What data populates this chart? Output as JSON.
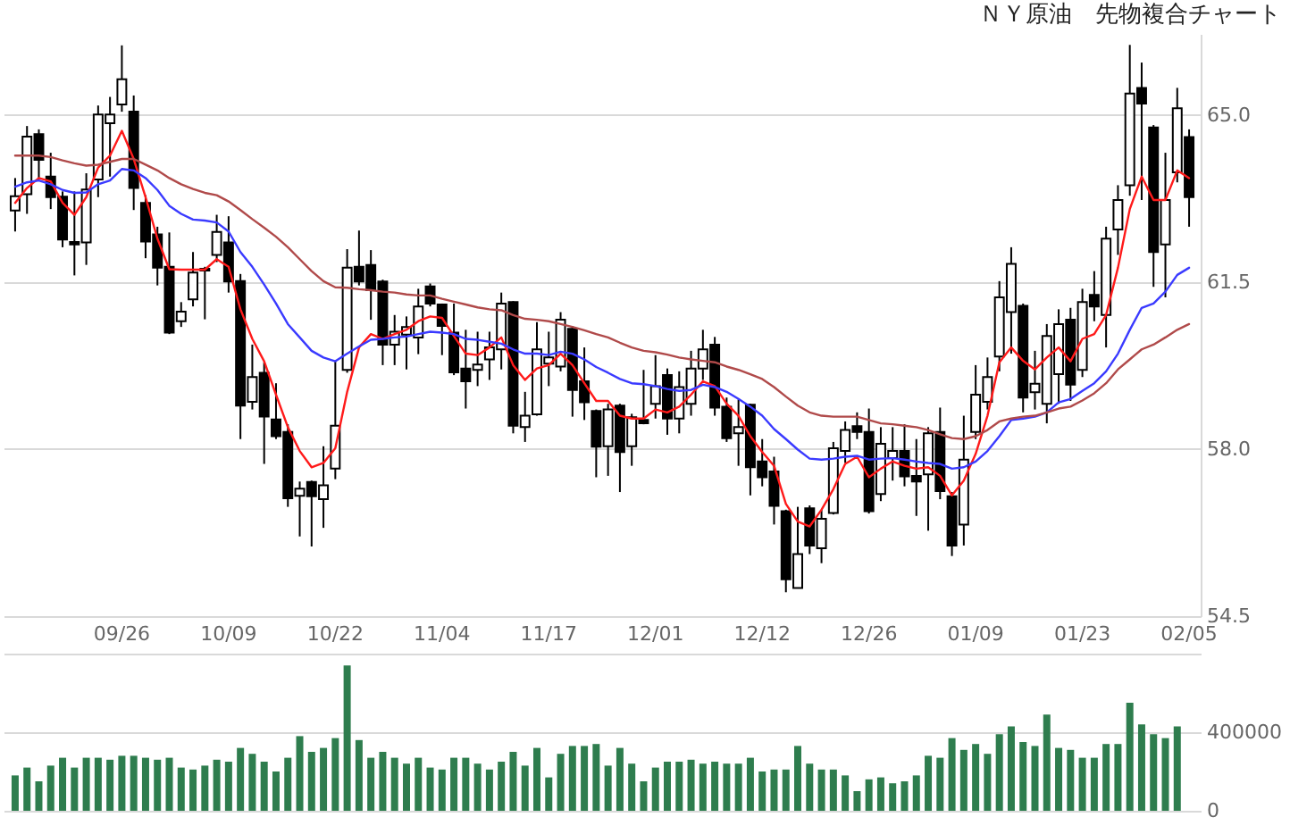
{
  "chart_data": [
    {
      "type": "candlestick",
      "title": "ＮＹ原油　先物複合チャート",
      "categories": [
        null,
        null,
        null,
        null,
        null,
        null,
        null,
        null,
        null,
        "09/26",
        null,
        null,
        null,
        null,
        null,
        null,
        null,
        null,
        "10/09",
        null,
        null,
        null,
        null,
        null,
        null,
        null,
        null,
        "10/22",
        null,
        null,
        null,
        null,
        null,
        null,
        null,
        null,
        "11/04",
        null,
        null,
        null,
        null,
        null,
        null,
        null,
        null,
        "11/17",
        null,
        null,
        null,
        null,
        null,
        null,
        null,
        null,
        "12/01",
        null,
        null,
        null,
        null,
        null,
        null,
        null,
        null,
        "12/12",
        null,
        null,
        null,
        null,
        null,
        null,
        null,
        null,
        "12/26",
        null,
        null,
        null,
        null,
        null,
        null,
        null,
        null,
        "01/09",
        null,
        null,
        null,
        null,
        null,
        null,
        null,
        null,
        "01/23",
        null,
        null,
        null,
        null,
        null,
        null,
        null,
        null,
        "02/05"
      ],
      "ohlc": [
        [
          63.0,
          63.68,
          62.56,
          63.3
        ],
        [
          63.34,
          64.77,
          62.93,
          64.55
        ],
        [
          64.6,
          64.7,
          63.65,
          64.06
        ],
        [
          63.71,
          64.21,
          63.03,
          63.28
        ],
        [
          63.29,
          63.4,
          62.23,
          62.39
        ],
        [
          62.34,
          63.4,
          61.64,
          62.29
        ],
        [
          62.33,
          63.78,
          61.86,
          63.44
        ],
        [
          63.65,
          65.2,
          63.28,
          65.01
        ],
        [
          64.83,
          65.38,
          63.71,
          65.01
        ],
        [
          65.22,
          66.46,
          65.07,
          65.75
        ],
        [
          65.07,
          65.41,
          63.01,
          63.47
        ],
        [
          63.16,
          63.32,
          62.0,
          62.35
        ],
        [
          62.5,
          62.66,
          61.43,
          61.8
        ],
        [
          61.82,
          62.54,
          60.41,
          60.44
        ],
        [
          60.68,
          61.08,
          60.56,
          60.88
        ],
        [
          61.14,
          62.13,
          60.99,
          61.7
        ],
        [
          61.78,
          61.82,
          60.72,
          61.74
        ],
        [
          62.07,
          62.91,
          61.92,
          62.55
        ],
        [
          62.33,
          62.88,
          61.28,
          61.51
        ],
        [
          61.52,
          61.67,
          58.21,
          58.91
        ],
        [
          58.99,
          60.19,
          58.83,
          59.51
        ],
        [
          59.6,
          59.82,
          57.69,
          58.68
        ],
        [
          58.62,
          59.38,
          58.21,
          58.27
        ],
        [
          58.36,
          58.52,
          56.79,
          56.97
        ],
        [
          57.02,
          57.32,
          56.17,
          57.17
        ],
        [
          57.31,
          57.34,
          55.96,
          57.01
        ],
        [
          56.95,
          58.06,
          56.35,
          57.24
        ],
        [
          57.59,
          59.84,
          57.37,
          58.49
        ],
        [
          59.66,
          62.19,
          59.6,
          61.8
        ],
        [
          61.82,
          62.58,
          61.43,
          61.51
        ],
        [
          61.86,
          62.17,
          60.71,
          61.33
        ],
        [
          61.51,
          61.55,
          59.76,
          60.19
        ],
        [
          60.19,
          60.81,
          59.76,
          60.46
        ],
        [
          60.4,
          60.78,
          59.67,
          60.56
        ],
        [
          60.34,
          61.36,
          59.99,
          60.99
        ],
        [
          61.41,
          61.47,
          60.99,
          61.05
        ],
        [
          61.03,
          61.05,
          59.97,
          60.58
        ],
        [
          60.44,
          61.05,
          59.55,
          59.61
        ],
        [
          59.69,
          60.5,
          58.85,
          59.42
        ],
        [
          59.66,
          60.46,
          59.32,
          59.77
        ],
        [
          59.88,
          60.46,
          59.45,
          60.13
        ],
        [
          60.09,
          61.28,
          59.67,
          61.05
        ],
        [
          61.08,
          61.1,
          58.33,
          58.49
        ],
        [
          58.46,
          59.2,
          58.15,
          58.7
        ],
        [
          58.73,
          60.66,
          58.7,
          60.09
        ],
        [
          59.79,
          60.46,
          59.32,
          59.92
        ],
        [
          59.73,
          60.87,
          59.63,
          60.71
        ],
        [
          60.52,
          60.58,
          58.68,
          59.24
        ],
        [
          59.42,
          60.13,
          58.61,
          58.98
        ],
        [
          58.8,
          58.83,
          57.41,
          58.05
        ],
        [
          58.06,
          58.95,
          57.44,
          58.83
        ],
        [
          58.91,
          58.95,
          57.1,
          57.94
        ],
        [
          58.06,
          58.74,
          57.65,
          58.67
        ],
        [
          58.61,
          59.66,
          58.52,
          58.54
        ],
        [
          58.95,
          59.97,
          58.64,
          59.32
        ],
        [
          59.55,
          59.69,
          58.3,
          58.64
        ],
        [
          58.64,
          59.63,
          58.33,
          59.3
        ],
        [
          58.95,
          60.06,
          58.7,
          59.69
        ],
        [
          59.69,
          60.5,
          59.45,
          60.09
        ],
        [
          60.19,
          60.35,
          58.7,
          58.87
        ],
        [
          58.89,
          59.08,
          58.15,
          58.23
        ],
        [
          58.33,
          59.04,
          57.65,
          58.46
        ],
        [
          58.93,
          58.95,
          57.03,
          57.62
        ],
        [
          57.74,
          58.21,
          57.22,
          57.41
        ],
        [
          57.53,
          57.84,
          56.42,
          56.81
        ],
        [
          56.7,
          56.73,
          55.0,
          55.27
        ],
        [
          55.09,
          56.79,
          55.08,
          55.8
        ],
        [
          56.76,
          56.82,
          55.8,
          55.98
        ],
        [
          55.92,
          56.73,
          55.61,
          56.54
        ],
        [
          56.66,
          58.15,
          56.63,
          58.02
        ],
        [
          57.96,
          58.58,
          57.71,
          58.4
        ],
        [
          58.48,
          58.77,
          58.21,
          58.36
        ],
        [
          58.36,
          58.85,
          56.65,
          56.7
        ],
        [
          57.06,
          58.46,
          56.91,
          58.11
        ],
        [
          57.81,
          58.46,
          57.34,
          57.96
        ],
        [
          57.96,
          58.52,
          57.22,
          57.43
        ],
        [
          57.44,
          58.21,
          56.6,
          57.32
        ],
        [
          57.47,
          58.46,
          56.29,
          58.33
        ],
        [
          58.36,
          58.87,
          56.95,
          57.12
        ],
        [
          57.01,
          57.1,
          55.76,
          55.98
        ],
        [
          56.42,
          58.7,
          55.98,
          57.78
        ],
        [
          58.36,
          59.76,
          58.21,
          59.14
        ],
        [
          58.99,
          59.92,
          58.83,
          59.51
        ],
        [
          59.94,
          61.52,
          59.63,
          61.18
        ],
        [
          60.87,
          62.23,
          60.0,
          61.88
        ],
        [
          61.0,
          61.05,
          58.77,
          59.08
        ],
        [
          59.19,
          60.06,
          58.83,
          59.37
        ],
        [
          58.95,
          60.62,
          58.54,
          60.37
        ],
        [
          59.57,
          60.93,
          58.95,
          60.62
        ],
        [
          60.71,
          60.96,
          59.01,
          59.35
        ],
        [
          59.66,
          61.36,
          59.51,
          61.08
        ],
        [
          61.23,
          61.73,
          60.68,
          60.99
        ],
        [
          60.81,
          62.66,
          60.13,
          62.41
        ],
        [
          62.6,
          63.53,
          62.07,
          63.22
        ],
        [
          63.53,
          66.47,
          63.31,
          65.45
        ],
        [
          65.57,
          66.1,
          63.22,
          65.24
        ],
        [
          64.74,
          64.79,
          61.4,
          62.13
        ],
        [
          62.29,
          64.21,
          61.18,
          63.22
        ],
        [
          63.8,
          65.57,
          63.59,
          65.14
        ],
        [
          64.54,
          64.7,
          62.66,
          63.28
        ]
      ],
      "series": [
        {
          "type": "line",
          "color": "#ff1a1a",
          "values": [
            63.16,
            63.47,
            63.68,
            63.61,
            63.16,
            62.91,
            63.28,
            63.9,
            64.15,
            64.67,
            64.08,
            63.28,
            62.41,
            61.77,
            61.76,
            61.76,
            61.76,
            61.98,
            61.82,
            60.93,
            60.31,
            59.84,
            59.14,
            58.46,
            57.96,
            57.62,
            57.71,
            58.02,
            59.2,
            60.13,
            60.41,
            60.31,
            60.41,
            60.5,
            60.68,
            60.78,
            60.75,
            60.37,
            60.0,
            59.97,
            60.13,
            60.34,
            59.76,
            59.45,
            59.69,
            59.76,
            60.0,
            59.76,
            59.38,
            59.01,
            59.01,
            58.7,
            58.64,
            58.64,
            58.83,
            58.77,
            58.89,
            59.14,
            59.42,
            59.32,
            58.95,
            58.7,
            58.27,
            57.94,
            57.65,
            56.85,
            56.48,
            56.38,
            56.73,
            57.16,
            57.69,
            57.84,
            57.41,
            57.59,
            57.74,
            57.65,
            57.59,
            57.62,
            57.44,
            57.03,
            57.34,
            57.9,
            58.7,
            59.82,
            60.13,
            59.85,
            59.67,
            59.92,
            60.13,
            59.84,
            60.31,
            60.41,
            60.81,
            61.8,
            63.03,
            63.71,
            63.22,
            63.22,
            63.84,
            63.68
          ]
        },
        {
          "type": "line",
          "color": "#3a3aff",
          "values": [
            63.5,
            63.59,
            63.63,
            63.55,
            63.43,
            63.37,
            63.38,
            63.55,
            63.63,
            63.87,
            63.84,
            63.68,
            63.43,
            63.1,
            62.93,
            62.81,
            62.79,
            62.75,
            62.56,
            62.13,
            61.82,
            61.45,
            61.05,
            60.62,
            60.34,
            60.06,
            59.92,
            59.84,
            60.0,
            60.15,
            60.29,
            60.31,
            60.34,
            60.36,
            60.41,
            60.46,
            60.44,
            60.41,
            60.31,
            60.29,
            60.25,
            60.21,
            60.09,
            60.0,
            60.0,
            59.97,
            60.04,
            60.0,
            59.88,
            59.72,
            59.6,
            59.47,
            59.38,
            59.36,
            59.32,
            59.26,
            59.22,
            59.24,
            59.35,
            59.3,
            59.2,
            59.05,
            58.89,
            58.7,
            58.42,
            58.21,
            57.99,
            57.8,
            57.78,
            57.8,
            57.84,
            57.86,
            57.78,
            57.8,
            57.81,
            57.78,
            57.74,
            57.71,
            57.69,
            57.59,
            57.62,
            57.74,
            57.96,
            58.27,
            58.61,
            58.64,
            58.68,
            58.77,
            58.98,
            59.05,
            59.22,
            59.38,
            59.63,
            60.0,
            60.5,
            60.96,
            61.05,
            61.3,
            61.65,
            61.8
          ]
        },
        {
          "type": "line",
          "color": "#b04a4a",
          "values": [
            64.15,
            64.15,
            64.15,
            64.12,
            64.05,
            63.99,
            63.94,
            63.96,
            64.02,
            64.08,
            64.08,
            63.96,
            63.84,
            63.68,
            63.55,
            63.45,
            63.37,
            63.32,
            63.19,
            63.01,
            62.82,
            62.64,
            62.45,
            62.23,
            61.98,
            61.73,
            61.52,
            61.39,
            61.38,
            61.35,
            61.33,
            61.3,
            61.28,
            61.24,
            61.22,
            61.22,
            61.15,
            61.09,
            61.03,
            60.97,
            60.93,
            60.91,
            60.81,
            60.73,
            60.71,
            60.68,
            60.62,
            60.56,
            60.49,
            60.41,
            60.34,
            60.23,
            60.13,
            60.06,
            60.03,
            59.98,
            59.92,
            59.88,
            59.85,
            59.82,
            59.73,
            59.66,
            59.57,
            59.47,
            59.3,
            59.1,
            58.91,
            58.77,
            58.7,
            58.68,
            58.68,
            58.68,
            58.61,
            58.54,
            58.52,
            58.49,
            58.46,
            58.4,
            58.31,
            58.23,
            58.21,
            58.27,
            58.4,
            58.58,
            58.64,
            58.68,
            58.7,
            58.77,
            58.85,
            58.89,
            59.02,
            59.17,
            59.38,
            59.67,
            59.88,
            60.09,
            60.19,
            60.34,
            60.5,
            60.62
          ]
        }
      ],
      "ylim": [
        54.5,
        66.7
      ],
      "yticks": [
        {
          "value": 54.5,
          "label": "54.5"
        },
        {
          "value": 58,
          "label": "58.0"
        },
        {
          "value": 61.5,
          "label": "61.5"
        },
        {
          "value": 65,
          "label": "65.0"
        }
      ],
      "grid": "y"
    },
    {
      "type": "bar",
      "categories": [
        null,
        null,
        null,
        null,
        null,
        null,
        null,
        null,
        null,
        null,
        null,
        null,
        null,
        null,
        null,
        null,
        null,
        null,
        null,
        null,
        null,
        null,
        null,
        null,
        null,
        null,
        null,
        null,
        null,
        null,
        null,
        null,
        null,
        null,
        null,
        null,
        null,
        null,
        null,
        null,
        null,
        null,
        null,
        null,
        null,
        null,
        null,
        null,
        null,
        null,
        null,
        null,
        null,
        null,
        null,
        null,
        null,
        null,
        null,
        null,
        null,
        null,
        null,
        null,
        null,
        null,
        null,
        null,
        null,
        null,
        null,
        null,
        null,
        null,
        null,
        null,
        null,
        null,
        null,
        null,
        null,
        null,
        null,
        null,
        null,
        null,
        null,
        null,
        null,
        null,
        null,
        null,
        null,
        null,
        null,
        null,
        null,
        null,
        null,
        null
      ],
      "values": [
        180000,
        220000,
        150000,
        230000,
        270000,
        220000,
        270000,
        270000,
        260000,
        280000,
        280000,
        270000,
        260000,
        270000,
        220000,
        210000,
        230000,
        260000,
        250000,
        320000,
        290000,
        250000,
        200000,
        270000,
        380000,
        300000,
        320000,
        370000,
        740000,
        360000,
        270000,
        300000,
        270000,
        240000,
        270000,
        220000,
        210000,
        270000,
        270000,
        240000,
        210000,
        250000,
        300000,
        230000,
        320000,
        170000,
        290000,
        330000,
        330000,
        340000,
        230000,
        320000,
        240000,
        150000,
        220000,
        250000,
        250000,
        260000,
        240000,
        250000,
        240000,
        240000,
        270000,
        200000,
        210000,
        210000,
        330000,
        240000,
        210000,
        210000,
        180000,
        100000,
        160000,
        170000,
        140000,
        150000,
        180000,
        280000,
        270000,
        370000,
        310000,
        340000,
        290000,
        390000,
        430000,
        350000,
        330000,
        490000,
        320000,
        310000,
        270000,
        270000,
        340000,
        340000,
        550000,
        440000,
        390000,
        370000,
        430000,
        null
      ],
      "color": "#2e7d4e",
      "ylim": [
        0,
        800000
      ],
      "yticks": [
        0,
        400000,
        {
          "value": 800000,
          "label": null
        }
      ],
      "grid": "y",
      "tick_labels": "y"
    }
  ]
}
